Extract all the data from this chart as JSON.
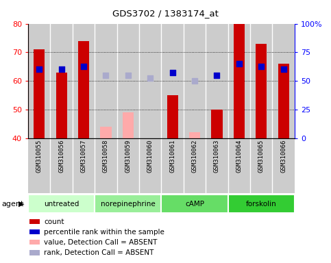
{
  "title": "GDS3702 / 1383174_at",
  "samples": [
    "GSM310055",
    "GSM310056",
    "GSM310057",
    "GSM310058",
    "GSM310059",
    "GSM310060",
    "GSM310061",
    "GSM310062",
    "GSM310063",
    "GSM310064",
    "GSM310065",
    "GSM310066"
  ],
  "groups": [
    {
      "label": "untreated",
      "color": "#ccffcc",
      "samples": [
        0,
        1,
        2
      ]
    },
    {
      "label": "norepinephrine",
      "color": "#99ee99",
      "samples": [
        3,
        4,
        5
      ]
    },
    {
      "label": "cAMP",
      "color": "#66dd66",
      "samples": [
        6,
        7,
        8
      ]
    },
    {
      "label": "forskolin",
      "color": "#33cc33",
      "samples": [
        9,
        10,
        11
      ]
    }
  ],
  "count_present": [
    71,
    63,
    74,
    null,
    null,
    null,
    55,
    null,
    50,
    80,
    73,
    66
  ],
  "count_absent": [
    null,
    null,
    null,
    44,
    49,
    40,
    null,
    42,
    null,
    null,
    null,
    null
  ],
  "rank_present": [
    64,
    64,
    65,
    null,
    null,
    null,
    63,
    null,
    62,
    66,
    65,
    64
  ],
  "rank_absent": [
    null,
    null,
    null,
    62,
    62,
    61,
    null,
    60,
    null,
    null,
    null,
    null
  ],
  "ylim": [
    40,
    80
  ],
  "yticks": [
    40,
    50,
    60,
    70,
    80
  ],
  "y2lim": [
    0,
    100
  ],
  "y2ticks": [
    0,
    25,
    50,
    75,
    100
  ],
  "bar_width": 0.5,
  "bar_color_present": "#cc0000",
  "bar_color_absent": "#ffaaaa",
  "dot_color_present": "#0000cc",
  "dot_color_absent": "#aaaacc",
  "dot_size": 35,
  "grid_color": "black",
  "bg_sample": "#cccccc",
  "bg_plot": "#cccccc"
}
